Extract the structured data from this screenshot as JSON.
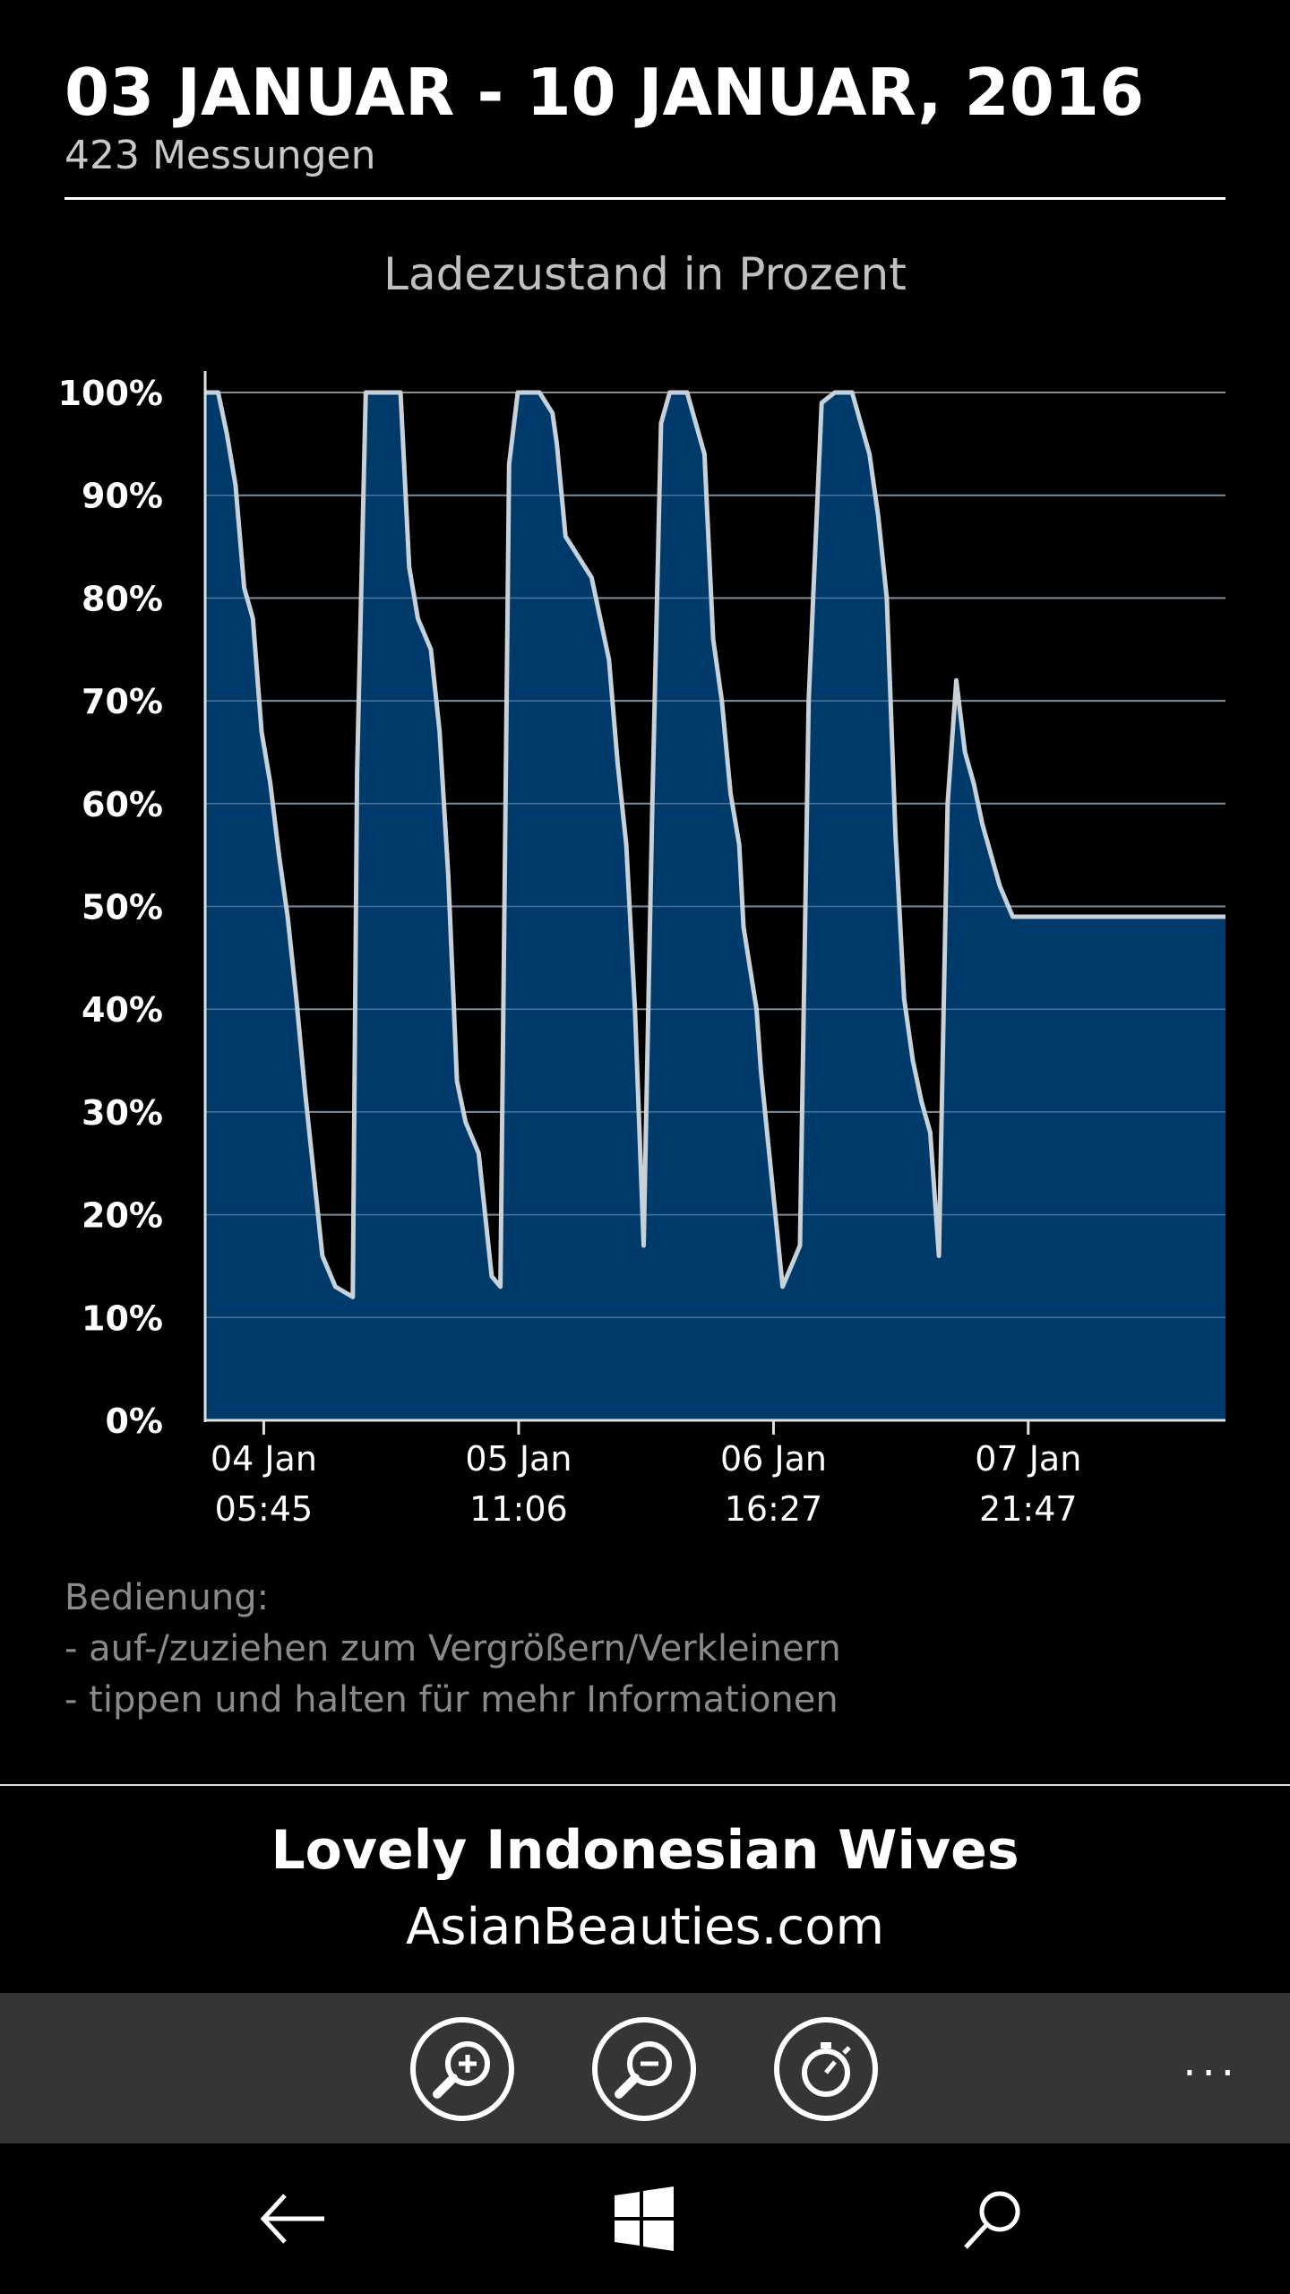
{
  "header": {
    "date_range": "03 JANUAR - 10 JANUAR, 2016",
    "measurements": "423 Messungen"
  },
  "chart_data": {
    "type": "area",
    "title": "Ladezustand in Prozent",
    "xlabel": "",
    "ylabel": "",
    "ylim": [
      0,
      100
    ],
    "yticks": [
      "100%",
      "90%",
      "80%",
      "70%",
      "60%",
      "50%",
      "40%",
      "30%",
      "20%",
      "10%",
      "0%"
    ],
    "xticks": [
      {
        "date": "04 Jan",
        "time": "05:45"
      },
      {
        "date": "05 Jan",
        "time": "11:06"
      },
      {
        "date": "06 Jan",
        "time": "16:27"
      },
      {
        "date": "07 Jan",
        "time": "21:47"
      }
    ],
    "grid": true,
    "legend": "none",
    "fill_color": "#003A6B",
    "line_color": "#C8D0D8",
    "series": [
      {
        "x": [
          "03 Jan 23:00",
          "04 Jan 00:30",
          "04 Jan 01:30",
          "04 Jan 02:30",
          "04 Jan 03:30",
          "04 Jan 04:30",
          "04 Jan 05:30",
          "04 Jan 06:30",
          "04 Jan 07:30",
          "04 Jan 08:30",
          "04 Jan 09:30",
          "04 Jan 10:30",
          "04 Jan 11:30",
          "04 Jan 12:30",
          "04 Jan 14:00",
          "04 Jan 16:00",
          "04 Jan 16:30",
          "04 Jan 17:30",
          "04 Jan 18:30",
          "04 Jan 21:30",
          "04 Jan 22:30",
          "04 Jan 23:30",
          "05 Jan 01:00",
          "05 Jan 02:00",
          "05 Jan 03:00",
          "05 Jan 04:00",
          "05 Jan 05:00",
          "05 Jan 06:30",
          "05 Jan 07:30",
          "05 Jan 08:00",
          "05 Jan 09:00",
          "05 Jan 10:00",
          "05 Jan 11:00",
          "05 Jan 11:30",
          "05 Jan 13:30",
          "05 Jan 15:00",
          "05 Jan 15:30",
          "05 Jan 16:30",
          "05 Jan 19:30",
          "05 Jan 20:30",
          "05 Jan 21:30",
          "05 Jan 22:30",
          "05 Jan 23:30",
          "06 Jan 00:30",
          "06 Jan 01:30",
          "06 Jan 02:30",
          "06 Jan 03:30",
          "06 Jan 04:30",
          "06 Jan 05:30",
          "06 Jan 06:30",
          "06 Jan 07:30",
          "06 Jan 08:30",
          "06 Jan 09:30",
          "06 Jan 10:30",
          "06 Jan 11:30",
          "06 Jan 12:30",
          "06 Jan 13:00",
          "06 Jan 14:30",
          "06 Jan 15:00",
          "06 Jan 17:30",
          "06 Jan 19:30",
          "06 Jan 20:30",
          "06 Jan 22:00",
          "06 Jan 23:30",
          "07 Jan 00:30",
          "07 Jan 01:30",
          "07 Jan 02:30",
          "07 Jan 03:30",
          "07 Jan 04:30",
          "07 Jan 05:30",
          "07 Jan 06:30",
          "07 Jan 07:30",
          "07 Jan 08:30",
          "07 Jan 09:30",
          "07 Jan 10:30",
          "07 Jan 11:30",
          "07 Jan 12:30",
          "07 Jan 13:30",
          "07 Jan 14:30",
          "07 Jan 15:30",
          "07 Jan 16:30",
          "07 Jan 17:30",
          "07 Jan 18:30",
          "07 Jan 20:00",
          "07 Jan 21:30",
          "07 Jan 22:00",
          "07 Jan 23:00",
          "08 Jan 00:30",
          "08 Jan 02:30",
          "08 Jan 03:30",
          "08 Jan 04:30",
          "08 Jan 05:30",
          "08 Jan 07:00",
          "08 Jan 08:00",
          "08 Jan 09:00",
          "08 Jan 10:30",
          "08 Jan 11:30",
          "08 Jan 12:00",
          "08 Jan 12:30",
          "08 Jan 13:30",
          "08 Jan 14:30",
          "08 Jan 15:30",
          "08 Jan 16:30",
          "08 Jan 17:30",
          "08 Jan 18:30",
          "08 Jan 19:30",
          "08 Jan 20:00",
          "08 Jan 20:30"
        ],
        "y": [
          100,
          100,
          96,
          91,
          81,
          78,
          67,
          62,
          55,
          49,
          41,
          32,
          24,
          16,
          13,
          12,
          63,
          100,
          100,
          100,
          83,
          78,
          75,
          67,
          53,
          33,
          29,
          26,
          18,
          14,
          13,
          93,
          100,
          100,
          100,
          98,
          95,
          86,
          82,
          78,
          74,
          64,
          56,
          40,
          17,
          60,
          97,
          100,
          100,
          100,
          97,
          94,
          76,
          70,
          61,
          56,
          48,
          40,
          34,
          13,
          17,
          70,
          99,
          100,
          100,
          100,
          97,
          94,
          88,
          80,
          57,
          41,
          35,
          31,
          28,
          16,
          60,
          72,
          65,
          62,
          58,
          55,
          52,
          49,
          49,
          49,
          49,
          49,
          49,
          49,
          49,
          49,
          49,
          49,
          49,
          49,
          49,
          49,
          49,
          49,
          49,
          49,
          49,
          49,
          49,
          49,
          49,
          49
        ]
      }
    ]
  },
  "help": {
    "heading": "Bedienung:",
    "line1": "- auf-/zuziehen zum Vergrößern/Verkleinern",
    "line2": "- tippen und halten für mehr Informationen"
  },
  "ad": {
    "title": "Lovely Indonesian Wives",
    "url": "AsianBeauties.com"
  },
  "appbar": {
    "more_label": "...",
    "icons": [
      "zoom-in-icon",
      "zoom-out-icon",
      "stopwatch-icon"
    ]
  },
  "navbar": {
    "icons": [
      "back-arrow-icon",
      "windows-logo-icon",
      "search-icon"
    ]
  }
}
